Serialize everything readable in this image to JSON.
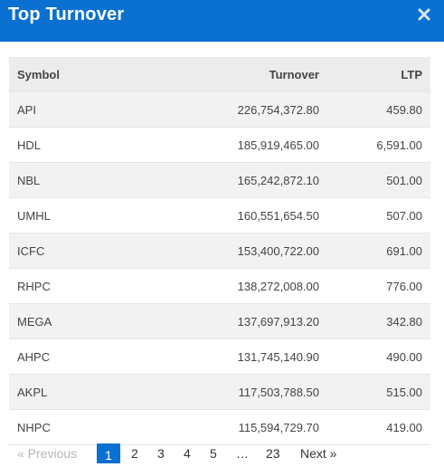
{
  "header": {
    "title": "Top Turnover"
  },
  "table": {
    "columns": [
      "Symbol",
      "Turnover",
      "LTP"
    ],
    "rows": [
      [
        "API",
        "226,754,372.80",
        "459.80"
      ],
      [
        "HDL",
        "185,919,465.00",
        "6,591.00"
      ],
      [
        "NBL",
        "165,242,872.10",
        "501.00"
      ],
      [
        "UMHL",
        "160,551,654.50",
        "507.00"
      ],
      [
        "ICFC",
        "153,400,722.00",
        "691.00"
      ],
      [
        "RHPC",
        "138,272,008.00",
        "776.00"
      ],
      [
        "MEGA",
        "137,697,913.20",
        "342.80"
      ],
      [
        "AHPC",
        "131,745,140.90",
        "490.00"
      ],
      [
        "AKPL",
        "117,503,788.50",
        "515.00"
      ],
      [
        "NHPC",
        "115,594,729.70",
        "419.00"
      ]
    ]
  },
  "pagination": {
    "previous": "« Previous",
    "pages": [
      "1",
      "2",
      "3",
      "4",
      "5",
      "…",
      "23"
    ],
    "active_page": "1",
    "next": "Next »"
  },
  "colors": {
    "header_bg": "#0a70d2",
    "active_page_bg": "#0a70d2"
  },
  "icons": {
    "close": "close-icon"
  }
}
